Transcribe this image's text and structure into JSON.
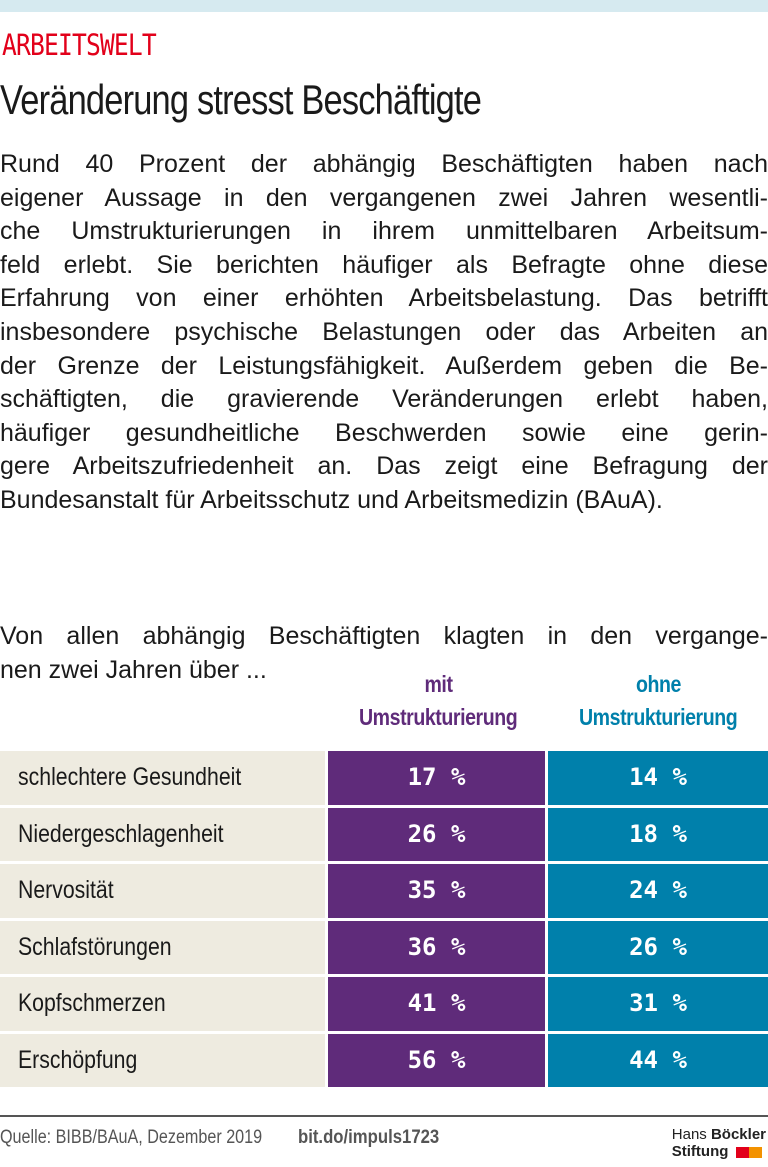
{
  "header": {
    "kicker": "ARBEITSWELT",
    "title": "Veränderung stresst Beschäftigte"
  },
  "intro_lines": [
    "Rund 40 Prozent der abhängig Beschäftigten haben nach",
    "eigener Aussage in den vergangenen zwei Jahren wesentli-",
    "che Umstrukturierungen in ihrem unmittelbaren Arbeitsum-",
    "feld erlebt. Sie berichten häufiger als Befragte ohne diese",
    "Erfahrung von einer erhöhten Arbeitsbelastung. Das betrifft",
    "insbesondere psychische Belastungen oder das Arbeiten an",
    "der Grenze der Leistungsfähigkeit. Außerdem geben die Be-",
    "schäftigten, die gravierende Veränderungen erlebt haben,",
    "häufiger gesundheitliche Beschwerden sowie eine gerin-",
    "gere Arbeitszufriedenheit an. Das zeigt eine Befragung der",
    "Bundesanstalt für Arbeitsschutz und Arbeitsmedizin (BAuA)."
  ],
  "subtitle_lines": [
    "Von allen abhängig Beschäftigten klagten in den vergange-",
    "nen zwei Jahren über ..."
  ],
  "chart_data": {
    "type": "table",
    "columns": [
      {
        "line1": "mit",
        "line2": "Umstrukturierung",
        "color": "#5f2b7a"
      },
      {
        "line1": "ohne",
        "line2": "Umstrukturierung",
        "color": "#0080ab"
      }
    ],
    "rows": [
      {
        "label": "schlechtere Gesundheit",
        "mit": "17 %",
        "ohne": "14 %"
      },
      {
        "label": "Niedergeschlagenheit",
        "mit": "26 %",
        "ohne": "18 %"
      },
      {
        "label": "Nervosität",
        "mit": "35 %",
        "ohne": "24 %"
      },
      {
        "label": "Schlafstörungen",
        "mit": "36 %",
        "ohne": "26 %"
      },
      {
        "label": "Kopfschmerzen",
        "mit": "41 %",
        "ohne": "31 %"
      },
      {
        "label": "Erschöpfung",
        "mit": "56 %",
        "ohne": "44 %"
      }
    ]
  },
  "footer": {
    "source": "Quelle: BIBB/BAuA, Dezember 2019",
    "link": "bit.do/impuls1723",
    "logo": {
      "line1a": "Hans",
      "line1b": "Böckler",
      "line2": "Stiftung"
    }
  },
  "colors": {
    "accent_red": "#e2001a",
    "purple": "#5f2b7a",
    "blue": "#0080ab",
    "label_bg": "#eeebe0",
    "logo_orange": "#f39200"
  }
}
